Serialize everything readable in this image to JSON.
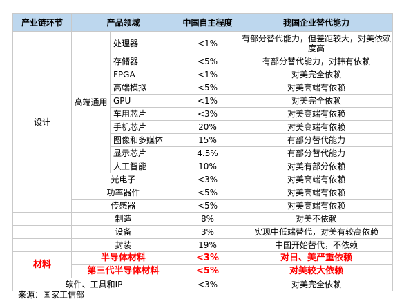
{
  "header": {
    "col1": "产业链环节",
    "col2": "产品领域",
    "col3": "中国自主程度",
    "col4": "我国企业替代能力"
  },
  "design_group": {
    "stage": "设计",
    "subgroup": "高端通用"
  },
  "rows": [
    {
      "product": "处理器",
      "level": "<1%",
      "ability": "有部分替代能力，但差距较大，对美依赖度高"
    },
    {
      "product": "存储器",
      "level": "<5%",
      "ability": "有部分替代能力，对韩有依赖"
    },
    {
      "product": "FPGA",
      "level": "<1%",
      "ability": "对美完全依赖"
    },
    {
      "product": "高端模拟",
      "level": "<5%",
      "ability": "对美高端有依赖"
    },
    {
      "product": "GPU",
      "level": "<1%",
      "ability": "对美完全依赖"
    },
    {
      "product": "车用芯片",
      "level": "<3%",
      "ability": "对美高端有依赖"
    },
    {
      "product": "手机芯片",
      "level": "20%",
      "ability": "对美高端有依赖"
    },
    {
      "product": "图像和多媒体",
      "level": "15%",
      "ability": "有部分替代能力"
    },
    {
      "product": "显示芯片",
      "level": "4.5%",
      "ability": "有部分替代能力"
    },
    {
      "product": "人工智能",
      "level": "10%",
      "ability": "对美有部分依赖"
    },
    {
      "product": "光电子",
      "level": "<3%",
      "ability": "对美高端有依赖"
    },
    {
      "product": "功率器件",
      "level": "<5%",
      "ability": "对美高端有依赖"
    },
    {
      "product": "传感器",
      "level": "<5%",
      "ability": "对美高端有依赖"
    },
    {
      "product": "制造",
      "level": "8%",
      "ability": "对美不依赖"
    },
    {
      "product": "设备",
      "level": "3%",
      "ability": "实现中低端替代，对美有较高依赖"
    },
    {
      "product": "封装",
      "level": "19%",
      "ability": "中国开始替代，不依赖"
    }
  ],
  "materials": {
    "stage": "材料",
    "rows": [
      {
        "product": "半导体材料",
        "level": "<3%",
        "ability": "对日、美严重依赖"
      },
      {
        "product": "第三代半导体材料",
        "level": "<5%",
        "ability": "对美较大依赖"
      }
    ]
  },
  "software": {
    "product": "软件、工具和IP",
    "level": "<3%",
    "ability": "对美完全依赖"
  },
  "source": "来源：国家工信部",
  "colors": {
    "header_bg": "#bdd7ee",
    "highlight": "#ff0000",
    "border": "#c9c9c9"
  }
}
